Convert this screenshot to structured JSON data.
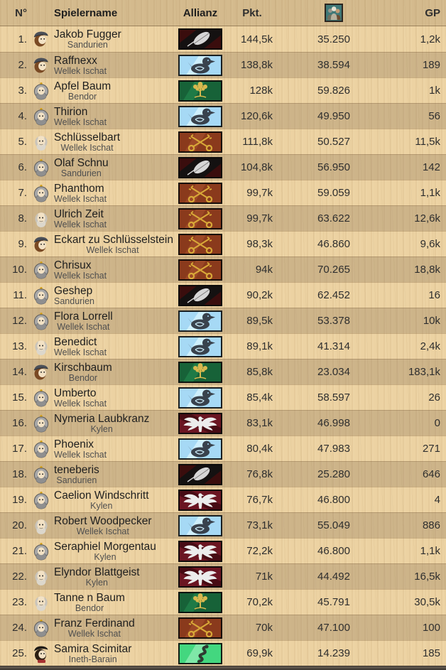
{
  "header": {
    "rank": "N°",
    "player": "Spielername",
    "alliance": "Allianz",
    "points": "Pkt.",
    "population_icon": "villagers-icon",
    "gp": "GP"
  },
  "colors": {
    "row-light": "#ecd2a2",
    "row-dark": "#cdb289",
    "header-bg": "#d9ba8b",
    "text-primary": "#1e1e1e",
    "text-secondary": "#4f4f4f",
    "text-numbers": "#2e2e2e",
    "footer-top": "#6a6157",
    "footer-bottom": "#3a352e"
  },
  "flags": {
    "leaf": {
      "bg": "#141111",
      "band": "#3a0d0d",
      "glyph": "#d6d6d6"
    },
    "duck": {
      "bg": "#a6d9f5",
      "band": "#ceeffd",
      "glyph": "#39424d"
    },
    "tree": {
      "bg": "#176238",
      "band": "#1e7a46",
      "glyph": "#d8b84e"
    },
    "keys": {
      "bg": "#8a3a1c",
      "band": "#9c4826",
      "glyph": "#d8a838"
    },
    "eagle": {
      "bg": "#6b1522",
      "band": "#470b14",
      "glyph": "#ececec"
    },
    "snake": {
      "bg": "#43d77f",
      "band": "#7fe8a8",
      "glyph": "#2e3b32"
    }
  },
  "avatars": {
    "merchant": {
      "cap": "#4a4f58",
      "hair": "#7a4a24",
      "face": "#f3e2c5"
    },
    "knight": {
      "helmet": "#a8a8a8",
      "finial": "#d4a017",
      "face": "#f3e2c5",
      "beard": "#8f8f8f"
    },
    "elder": {
      "hair": "#c9c4ba",
      "face": "#f3e2c5",
      "beard": "#dcd7cc"
    },
    "rogue": {
      "hat": "#1e1a16",
      "hair": "#2b1e12",
      "face": "#f3e2c5",
      "shirt": "#a83232"
    }
  },
  "population_icon_palette": {
    "bg": "#3f7877",
    "border": "#2c2620",
    "center": "#e8e3d3",
    "center_body": "#b7b19e",
    "left": "#96968b",
    "left_body": "#6f6f5f",
    "right": "#c09a74",
    "right_body": "#6b4c31"
  },
  "rows": [
    {
      "rank": "1.",
      "name": "Jakob Fugger",
      "region": "Sandurien",
      "avatar": "merchant",
      "flag": "leaf",
      "points": "144,5k",
      "population": "35.250",
      "gp": "1,2k"
    },
    {
      "rank": "2.",
      "name": "Raffnexx",
      "region": "Wellek Ischat",
      "avatar": "merchant",
      "flag": "duck",
      "points": "138,8k",
      "population": "38.594",
      "gp": "189"
    },
    {
      "rank": "3.",
      "name": "Apfel Baum",
      "region": "Bendor",
      "avatar": "knight",
      "flag": "tree",
      "points": "128k",
      "population": "59.826",
      "gp": "1k"
    },
    {
      "rank": "4.",
      "name": "Thirion",
      "region": "Wellek Ischat",
      "avatar": "knight",
      "flag": "duck",
      "points": "120,6k",
      "population": "49.950",
      "gp": "56"
    },
    {
      "rank": "5.",
      "name": "Schlüsselbart",
      "region": "Wellek Ischat",
      "avatar": "elder",
      "flag": "keys",
      "points": "111,8k",
      "population": "50.527",
      "gp": "11,5k"
    },
    {
      "rank": "6.",
      "name": "Olaf Schnu",
      "region": "Sandurien",
      "avatar": "knight",
      "flag": "leaf",
      "points": "104,8k",
      "population": "56.950",
      "gp": "142"
    },
    {
      "rank": "7.",
      "name": "Phanthom",
      "region": "Wellek Ischat",
      "avatar": "knight",
      "flag": "keys",
      "points": "99,7k",
      "population": "59.059",
      "gp": "1,1k"
    },
    {
      "rank": "8.",
      "name": "Ulrich Zeit",
      "region": "Wellek Ischat",
      "avatar": "elder",
      "flag": "keys",
      "points": "99,7k",
      "population": "63.622",
      "gp": "12,6k"
    },
    {
      "rank": "9.",
      "name": "Eckart zu Schlüsselstein",
      "region": "Wellek Ischat",
      "avatar": "merchant",
      "flag": "keys",
      "points": "98,3k",
      "population": "46.860",
      "gp": "9,6k"
    },
    {
      "rank": "10.",
      "name": "Chrisux",
      "region": "Wellek Ischat",
      "avatar": "knight",
      "flag": "keys",
      "points": "94k",
      "population": "70.265",
      "gp": "18,8k"
    },
    {
      "rank": "11.",
      "name": "Geshep",
      "region": "Sandurien",
      "avatar": "knight",
      "flag": "leaf",
      "points": "90,2k",
      "population": "62.452",
      "gp": "16"
    },
    {
      "rank": "12.",
      "name": "Flora Lorrell",
      "region": "Wellek Ischat",
      "avatar": "knight",
      "flag": "duck",
      "points": "89,5k",
      "population": "53.378",
      "gp": "10k"
    },
    {
      "rank": "13.",
      "name": "Benedict",
      "region": "Wellek Ischat",
      "avatar": "elder",
      "flag": "duck",
      "points": "89,1k",
      "population": "41.314",
      "gp": "2,4k"
    },
    {
      "rank": "14.",
      "name": "Kirschbaum",
      "region": "Bendor",
      "avatar": "merchant",
      "flag": "tree",
      "points": "85,8k",
      "population": "23.034",
      "gp": "183,1k"
    },
    {
      "rank": "15.",
      "name": "Umberto",
      "region": "Wellek Ischat",
      "avatar": "knight",
      "flag": "duck",
      "points": "85,4k",
      "population": "58.597",
      "gp": "26"
    },
    {
      "rank": "16.",
      "name": "Nymeria Laubkranz",
      "region": "Kylen",
      "avatar": "knight",
      "flag": "eagle",
      "points": "83,1k",
      "population": "46.998",
      "gp": "0"
    },
    {
      "rank": "17.",
      "name": "Phoenix",
      "region": "Wellek Ischat",
      "avatar": "knight",
      "flag": "duck",
      "points": "80,4k",
      "population": "47.983",
      "gp": "271"
    },
    {
      "rank": "18.",
      "name": "teneberis",
      "region": "Sandurien",
      "avatar": "knight",
      "flag": "leaf",
      "points": "76,8k",
      "population": "25.280",
      "gp": "646"
    },
    {
      "rank": "19.",
      "name": "Caelion Windschritt",
      "region": "Kylen",
      "avatar": "knight",
      "flag": "eagle",
      "points": "76,7k",
      "population": "46.800",
      "gp": "4"
    },
    {
      "rank": "20.",
      "name": "Robert Woodpecker",
      "region": "Wellek Ischat",
      "avatar": "elder",
      "flag": "duck",
      "points": "73,1k",
      "population": "55.049",
      "gp": "886"
    },
    {
      "rank": "21.",
      "name": "Seraphiel Morgentau",
      "region": "Kylen",
      "avatar": "knight",
      "flag": "eagle",
      "points": "72,2k",
      "population": "46.800",
      "gp": "1,1k"
    },
    {
      "rank": "22.",
      "name": "Elyndor Blattgeist",
      "region": "Kylen",
      "avatar": "elder",
      "flag": "eagle",
      "points": "71k",
      "population": "44.492",
      "gp": "16,5k"
    },
    {
      "rank": "23.",
      "name": "Tanne n Baum",
      "region": "Bendor",
      "avatar": "elder",
      "flag": "tree",
      "points": "70,2k",
      "population": "45.791",
      "gp": "30,5k"
    },
    {
      "rank": "24.",
      "name": "Franz Ferdinand",
      "region": "Wellek Ischat",
      "avatar": "knight",
      "flag": "keys",
      "points": "70k",
      "population": "47.100",
      "gp": "100"
    },
    {
      "rank": "25.",
      "name": "Samira Scimitar",
      "region": "Ineth-Barain",
      "avatar": "rogue",
      "flag": "snake",
      "points": "69,9k",
      "population": "14.239",
      "gp": "185"
    }
  ]
}
